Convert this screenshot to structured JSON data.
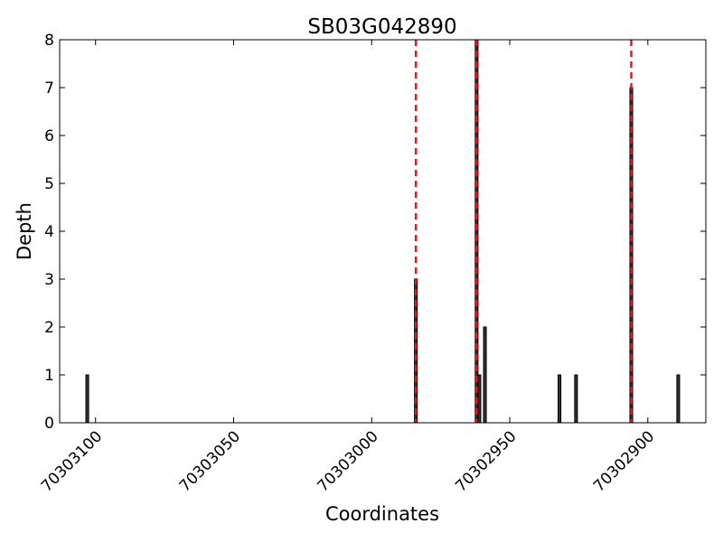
{
  "chart_data": {
    "type": "bar",
    "title": "SB03G042890",
    "x_label": "Coordinates",
    "y_label": "Depth",
    "x": [
      70303103,
      70302984,
      70302962,
      70302961,
      70302959,
      70302932,
      70302926,
      70302906,
      70302889
    ],
    "values": [
      1,
      3,
      8,
      1,
      2,
      1,
      1,
      7,
      1
    ],
    "color": "#333333",
    "xlim": [
      70303113,
      70302879
    ],
    "xticks": [
      70303100,
      70303050,
      70303000,
      70302950,
      70302900
    ],
    "ylim": [
      0,
      8
    ],
    "yticks": [
      0,
      1,
      2,
      3,
      4,
      5,
      6,
      7,
      8
    ],
    "vlines": [
      70302984,
      70302962,
      70302906
    ],
    "vline_color": "#e31a1c"
  }
}
